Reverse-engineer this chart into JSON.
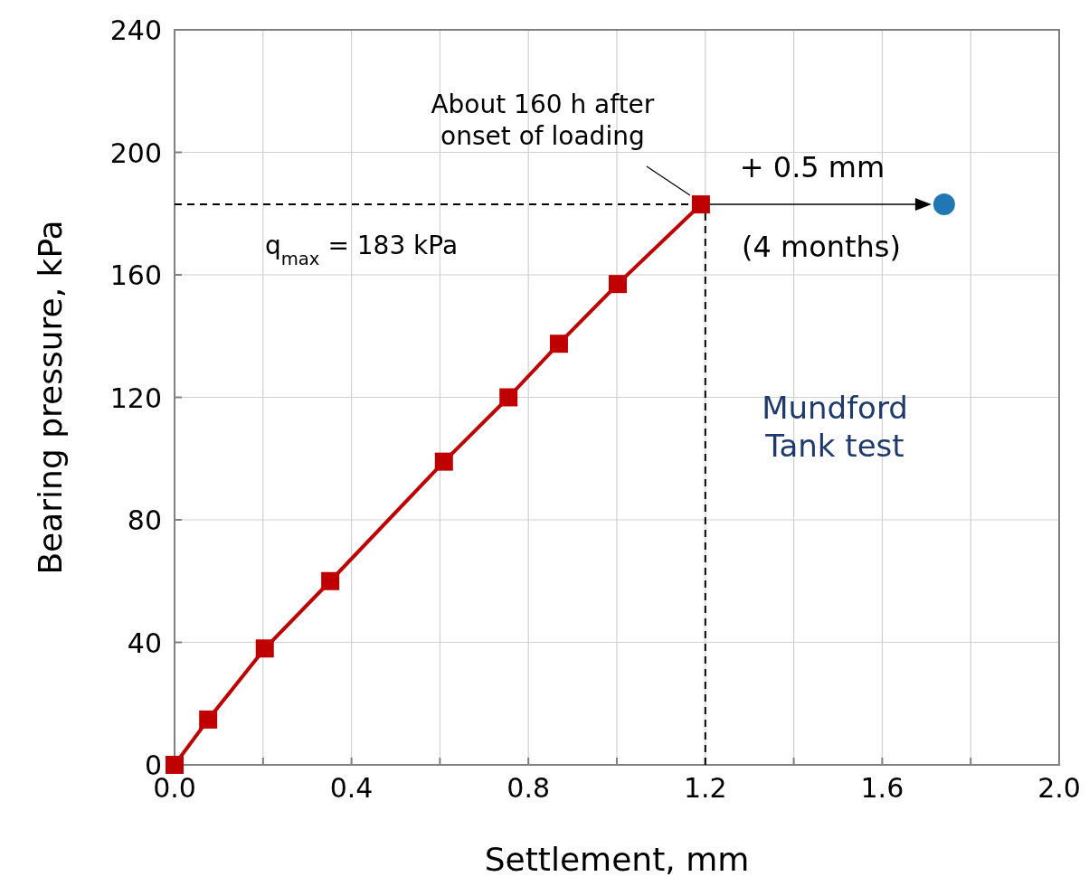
{
  "chart_data": {
    "type": "line",
    "xlabel": "Settlement, mm",
    "ylabel": "Bearing pressure, kPa",
    "xlim": [
      0,
      2.0
    ],
    "ylim": [
      0,
      240
    ],
    "xticks": [
      {
        "value": 0,
        "label": "0.0"
      },
      {
        "value": 0.2,
        "label": null
      },
      {
        "value": 0.4,
        "label": "0.4"
      },
      {
        "value": 0.6,
        "label": null
      },
      {
        "value": 0.8,
        "label": "0.8"
      },
      {
        "value": 1.0,
        "label": null
      },
      {
        "value": 1.2,
        "label": "1.2"
      },
      {
        "value": 1.4,
        "label": null
      },
      {
        "value": 1.6,
        "label": "1.6"
      },
      {
        "value": 1.8,
        "label": null
      },
      {
        "value": 2.0,
        "label": "2.0"
      }
    ],
    "yticks": [
      0,
      40,
      80,
      120,
      160,
      200,
      240
    ],
    "grid": true,
    "marker": "square",
    "line_style": "solid",
    "series": [
      {
        "color": "#c00000",
        "x": [
          0,
          0.076,
          0.204,
          0.352,
          0.609,
          0.755,
          0.869,
          1.002,
          1.19
        ],
        "values": [
          0,
          14.8,
          38,
          60,
          99,
          120,
          137.5,
          157,
          183
        ]
      },
      {
        "type": "scatter",
        "marker": "circle",
        "color": "#1f77b4",
        "x": [
          1.74
        ],
        "values": [
          183
        ]
      }
    ],
    "ref_lines": [
      {
        "axis": "y",
        "value": 183,
        "label": "q$_{max}$ = 183 kPa",
        "line_style": "dashed",
        "color": "#000000"
      },
      {
        "axis": "x",
        "value": 1.2,
        "label": null,
        "line_style": "dashed",
        "color": "#000000"
      }
    ],
    "annotations": [
      {
        "text": "About 160 h after\nonset of loading",
        "x": 1.19,
        "y": 183
      },
      "+ 0.5 mm",
      "(4 months)",
      "Mundford\nTank test"
    ]
  }
}
